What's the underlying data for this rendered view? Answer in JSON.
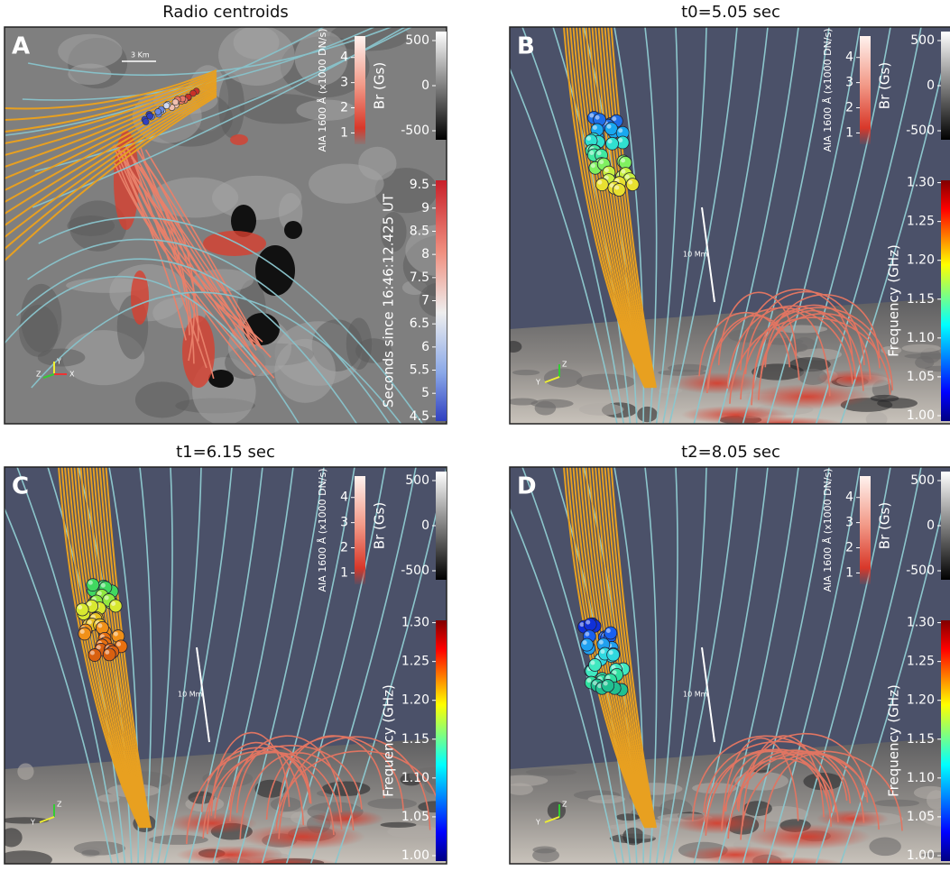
{
  "panels": [
    {
      "letter": "A",
      "title": "Radio centroids",
      "scale_label": "3 Km",
      "axes": [
        "Y",
        "Z",
        "X"
      ],
      "colorbars": [
        {
          "label": "AIA 1600 Å (x1000 DN/s)",
          "lim": [
            0.55,
            4.85
          ],
          "ticks": [
            1,
            2,
            3,
            4
          ]
        },
        {
          "label": "Br (Gs)",
          "lim": [
            -600,
            600
          ],
          "ticks": [
            -500,
            0,
            500
          ]
        },
        {
          "label": "Seconds since 16:46:12.425 UT",
          "lim": [
            4.4,
            9.6
          ],
          "ticks": [
            4.5,
            5,
            5.5,
            6,
            6.5,
            7,
            7.5,
            8,
            8.5,
            9,
            9.5
          ]
        }
      ]
    },
    {
      "letter": "B",
      "title": "t0=5.05 sec",
      "scale_label": "10 Mm",
      "axes": [
        "Z",
        "Y"
      ],
      "colorbars": [
        {
          "label": "AIA 1600 Å (x1000 DN/s)",
          "lim": [
            0.55,
            4.85
          ],
          "ticks": [
            1,
            2,
            3,
            4
          ]
        },
        {
          "label": "Br (Gs)",
          "lim": [
            -600,
            600
          ],
          "ticks": [
            -500,
            0,
            500
          ]
        },
        {
          "label": "Frequency (GHz)",
          "lim": [
            0.993,
            1.303
          ],
          "ticks": [
            {
              "value": 1.0,
              "label": "1.00"
            },
            1.05,
            {
              "value": 1.1,
              "label": "1.10"
            },
            1.15,
            {
              "value": 1.2,
              "label": "1.20"
            },
            1.25,
            {
              "value": 1.3,
              "label": "1.30"
            }
          ]
        }
      ]
    },
    {
      "letter": "C",
      "title": "t1=6.15 sec",
      "scale_label": "10 Mm",
      "axes": [
        "Z",
        "Y"
      ],
      "colorbars": [
        {
          "label": "AIA 1600 Å (x1000 DN/s)",
          "lim": [
            0.55,
            4.85
          ],
          "ticks": [
            1,
            2,
            3,
            4
          ]
        },
        {
          "label": "Br (Gs)",
          "lim": [
            -600,
            600
          ],
          "ticks": [
            -500,
            0,
            500
          ]
        },
        {
          "label": "Frequency (GHz)",
          "lim": [
            0.993,
            1.303
          ],
          "ticks": [
            {
              "value": 1.0,
              "label": "1.00"
            },
            1.05,
            {
              "value": 1.1,
              "label": "1.10"
            },
            1.15,
            {
              "value": 1.2,
              "label": "1.20"
            },
            1.25,
            {
              "value": 1.3,
              "label": "1.30"
            }
          ]
        }
      ]
    },
    {
      "letter": "D",
      "title": "t2=8.05 sec",
      "scale_label": "10 Mm",
      "axes": [
        "Z",
        "Y"
      ],
      "colorbars": [
        {
          "label": "AIA 1600 Å (x1000 DN/s)",
          "lim": [
            0.55,
            4.85
          ],
          "ticks": [
            1,
            2,
            3,
            4
          ]
        },
        {
          "label": "Br (Gs)",
          "lim": [
            -600,
            600
          ],
          "ticks": [
            -500,
            0,
            500
          ]
        },
        {
          "label": "Frequency (GHz)",
          "lim": [
            0.993,
            1.303
          ],
          "ticks": [
            {
              "value": 1.0,
              "label": "1.00"
            },
            1.05,
            {
              "value": 1.1,
              "label": "1.10"
            },
            1.15,
            {
              "value": 1.2,
              "label": "1.20"
            },
            1.25,
            {
              "value": 1.3,
              "label": "1.30"
            }
          ]
        }
      ]
    }
  ]
}
